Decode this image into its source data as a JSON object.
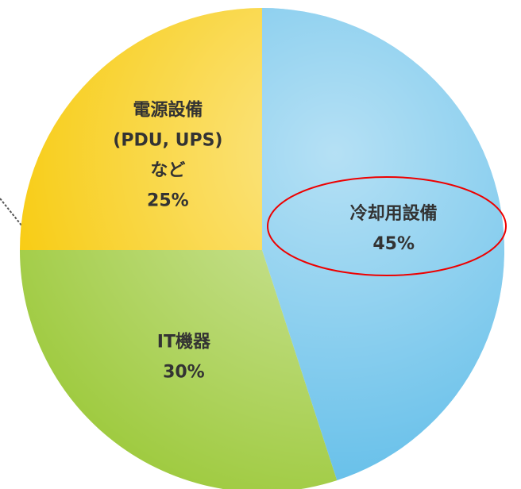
{
  "chart_data": {
    "type": "pie",
    "categories": [
      [
        "冷却用設備"
      ],
      [
        "IT機器"
      ],
      [
        "電源設備",
        "(PDU, UPS)",
        "など"
      ]
    ],
    "values": [
      45,
      30,
      25
    ],
    "value_labels": [
      "45%",
      "30%",
      "25%"
    ],
    "colors": [
      "#5bbbe8",
      "#9cc93a",
      "#f7c800"
    ]
  }
}
